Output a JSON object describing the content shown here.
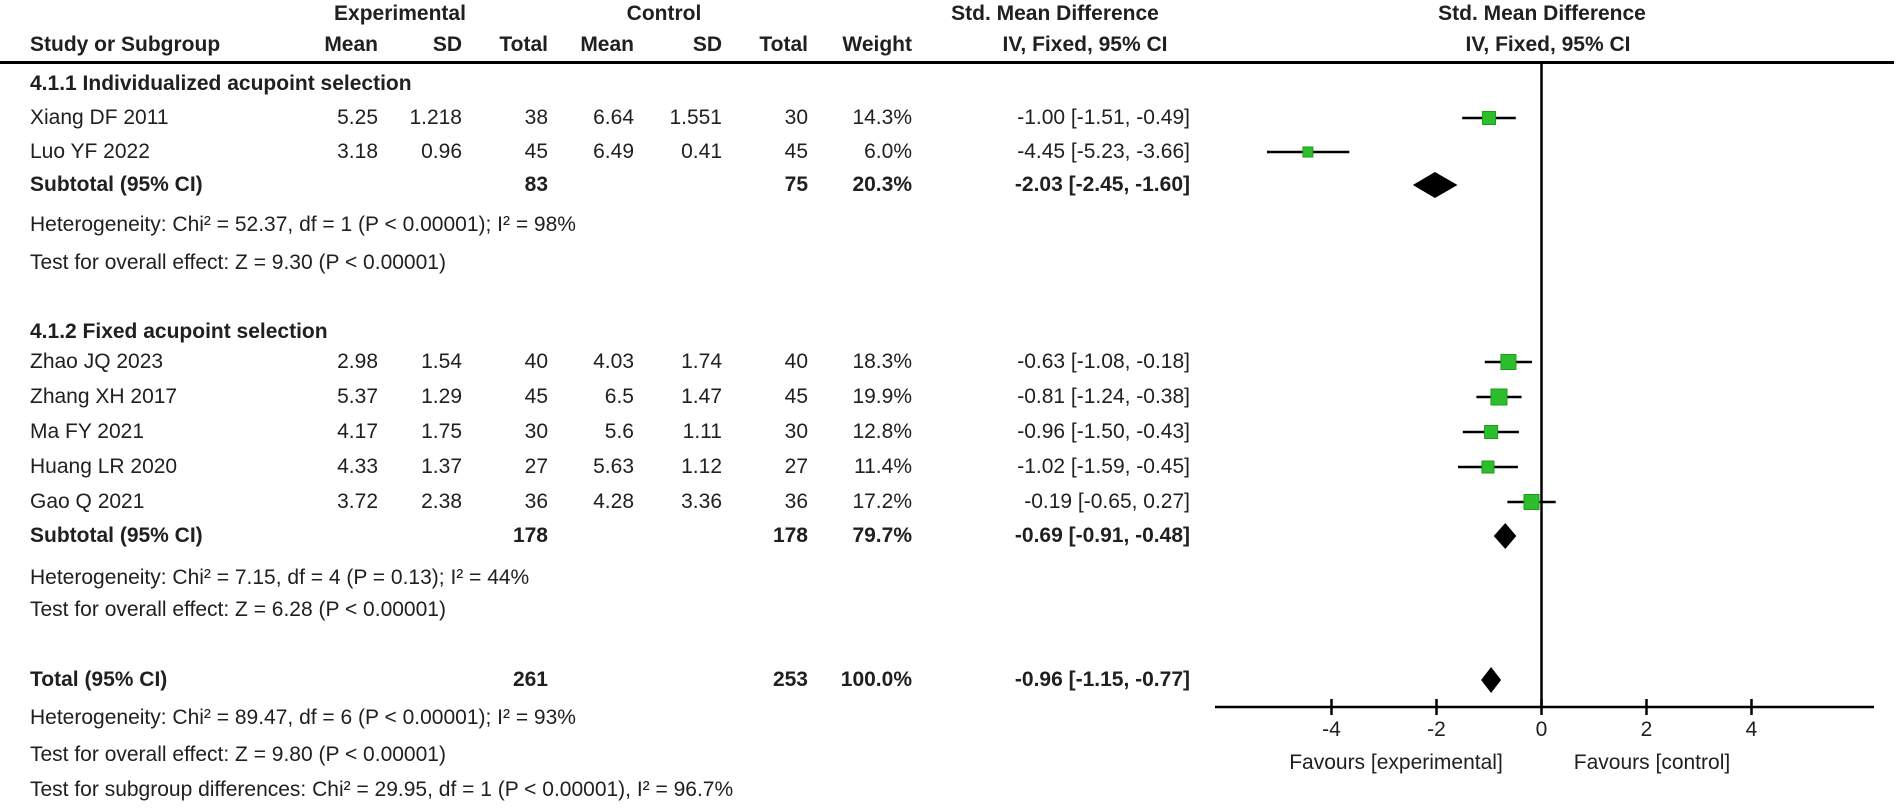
{
  "header": {
    "experimental": "Experimental",
    "control": "Control",
    "smd1": "Std. Mean Difference",
    "smd2": "Std. Mean Difference",
    "study_col": "Study or Subgroup",
    "mean1": "Mean",
    "sd1": "SD",
    "total1": "Total",
    "mean2": "Mean",
    "sd2": "SD",
    "total2": "Total",
    "weight": "Weight",
    "method1": "IV, Fixed, 95% CI",
    "method2": "IV, Fixed, 95% CI"
  },
  "rows": [
    {
      "study": "4.1.1 Individualized acupoint selection"
    },
    {
      "study": "Xiang DF 2011",
      "m1": "5.25",
      "s1": "1.218",
      "t1": "38",
      "m2": "6.64",
      "s2": "1.551",
      "t2": "30",
      "w": "14.3%",
      "ci": "-1.00 [-1.51, -0.49]"
    },
    {
      "study": "Luo YF 2022",
      "m1": "3.18",
      "s1": "0.96",
      "t1": "45",
      "m2": "6.49",
      "s2": "0.41",
      "t2": "45",
      "w": "6.0%",
      "ci": "-4.45 [-5.23, -3.66]"
    },
    {
      "study": "Subtotal (95% CI)",
      "t1": "83",
      "t2": "75",
      "w": "20.3%",
      "ci": "-2.03 [-2.45, -1.60]"
    },
    {
      "study": "Heterogeneity: Chi² = 52.37, df = 1 (P < 0.00001); I² = 98%"
    },
    {
      "study": "Test for overall effect: Z = 9.30 (P < 0.00001)"
    },
    {
      "study": "4.1.2 Fixed acupoint selection"
    },
    {
      "study": "Zhao JQ 2023",
      "m1": "2.98",
      "s1": "1.54",
      "t1": "40",
      "m2": "4.03",
      "s2": "1.74",
      "t2": "40",
      "w": "18.3%",
      "ci": "-0.63 [-1.08, -0.18]"
    },
    {
      "study": "Zhang XH 2017",
      "m1": "5.37",
      "s1": "1.29",
      "t1": "45",
      "m2": "6.5",
      "s2": "1.47",
      "t2": "45",
      "w": "19.9%",
      "ci": "-0.81 [-1.24, -0.38]"
    },
    {
      "study": "Ma FY 2021",
      "m1": "4.17",
      "s1": "1.75",
      "t1": "30",
      "m2": "5.6",
      "s2": "1.11",
      "t2": "30",
      "w": "12.8%",
      "ci": "-0.96 [-1.50, -0.43]"
    },
    {
      "study": "Huang LR 2020",
      "m1": "4.33",
      "s1": "1.37",
      "t1": "27",
      "m2": "5.63",
      "s2": "1.12",
      "t2": "27",
      "w": "11.4%",
      "ci": "-1.02 [-1.59, -0.45]"
    },
    {
      "study": "Gao Q 2021",
      "m1": "3.72",
      "s1": "2.38",
      "t1": "36",
      "m2": "4.28",
      "s2": "3.36",
      "t2": "36",
      "w": "17.2%",
      "ci": "-0.19 [-0.65, 0.27]"
    },
    {
      "study": "Subtotal (95% CI)",
      "t1": "178",
      "t2": "178",
      "w": "79.7%",
      "ci": "-0.69 [-0.91, -0.48]"
    },
    {
      "study": "Heterogeneity: Chi² = 7.15, df = 4 (P = 0.13); I² = 44%"
    },
    {
      "study": "Test for overall effect: Z = 6.28 (P < 0.00001)"
    },
    {
      "study": "Total (95% CI)",
      "t1": "261",
      "t2": "253",
      "w": "100.0%",
      "ci": "-0.96 [-1.15, -0.77]"
    },
    {
      "study": "Heterogeneity: Chi² = 89.47, df = 6 (P < 0.00001); I² = 93%"
    },
    {
      "study": "Test for overall effect: Z = 9.80 (P < 0.00001)"
    },
    {
      "study": "Test for subgroup differences: Chi² = 29.95, df = 1 (P < 0.00001), I² = 96.7%"
    }
  ],
  "axis": {
    "favours_left": "Favours [experimental]",
    "favours_right": "Favours [control]"
  },
  "colors": {
    "marker_green": "#2DBE2D",
    "marker_green_edge": "#1A9E1A",
    "diamond_black": "#000000",
    "line_black": "#000000",
    "text": "#202020"
  },
  "chart_data": {
    "type": "forest",
    "effect_measure": "Std. Mean Difference (IV, Fixed, 95% CI)",
    "xlim": [
      -6.3,
      6.4
    ],
    "ticks": [
      -4,
      -2,
      0,
      2,
      4
    ],
    "zero_line": 0,
    "studies": [
      {
        "name": "Xiang DF 2011",
        "smd": -1.0,
        "ci": [
          -1.51,
          -0.49
        ],
        "weight_pct": 14.3,
        "row": 1
      },
      {
        "name": "Luo YF 2022",
        "smd": -4.45,
        "ci": [
          -5.23,
          -3.66
        ],
        "weight_pct": 6.0,
        "row": 2
      },
      {
        "name": "Zhao JQ 2023",
        "smd": -0.63,
        "ci": [
          -1.08,
          -0.18
        ],
        "weight_pct": 18.3,
        "row": 7
      },
      {
        "name": "Zhang XH 2017",
        "smd": -0.81,
        "ci": [
          -1.24,
          -0.38
        ],
        "weight_pct": 19.9,
        "row": 8
      },
      {
        "name": "Ma FY 2021",
        "smd": -0.96,
        "ci": [
          -1.5,
          -0.43
        ],
        "weight_pct": 12.8,
        "row": 9
      },
      {
        "name": "Huang LR 2020",
        "smd": -1.02,
        "ci": [
          -1.59,
          -0.45
        ],
        "weight_pct": 11.4,
        "row": 10
      },
      {
        "name": "Gao Q 2021",
        "smd": -0.19,
        "ci": [
          -0.65,
          0.27
        ],
        "weight_pct": 17.2,
        "row": 11
      }
    ],
    "diamonds": [
      {
        "name": "Subtotal 4.1.1 (95% CI)",
        "smd": -2.03,
        "ci": [
          -2.45,
          -1.6
        ],
        "row": 3
      },
      {
        "name": "Subtotal 4.1.2 (95% CI)",
        "smd": -0.69,
        "ci": [
          -0.91,
          -0.48
        ],
        "row": 12
      },
      {
        "name": "Total (95% CI)",
        "smd": -0.96,
        "ci": [
          -1.15,
          -0.77
        ],
        "row": 15
      }
    ]
  }
}
